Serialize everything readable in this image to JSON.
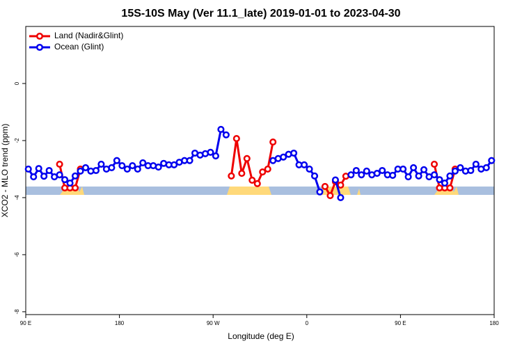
{
  "chart_data": {
    "type": "line",
    "title": "15S-10S May (Ver 11.1_late)   2019-01-01 to 2023-04-30",
    "x_label": "Longitude (deg E)",
    "y_label": "XCO2 - MLO trend (ppm)",
    "x": [
      92.5,
      97.5,
      102.5,
      107.5,
      112.5,
      117.5,
      122.5,
      127.5,
      132.5,
      137.5,
      142.5,
      147.5,
      152.5,
      157.5,
      162.5,
      167.5,
      172.5,
      177.5,
      182.5,
      187.5,
      192.5,
      197.5,
      202.5,
      207.5,
      212.5,
      217.5,
      222.5,
      227.5,
      232.5,
      237.5,
      242.5,
      247.5,
      252.5,
      257.5,
      262.5,
      267.5,
      272.5,
      277.5,
      282.5,
      287.5,
      292.5,
      297.5,
      302.5,
      307.5,
      312.5,
      317.5,
      322.5,
      327.5,
      332.5,
      337.5,
      342.5,
      347.5,
      352.5,
      357.5,
      362.5,
      367.5,
      372.5,
      377.5,
      382.5,
      387.5,
      392.5,
      397.5,
      402.5,
      407.5,
      412.5,
      417.5,
      422.5,
      427.5,
      432.5,
      437.5,
      442.5,
      447.5,
      452.5,
      457.5,
      462.5,
      467.5,
      472.5,
      477.5,
      482.5,
      487.5,
      492.5,
      497.5,
      502.5,
      507.5,
      512.5,
      517.5,
      522.5,
      527.5,
      532.5,
      537.5
    ],
    "series": [
      {
        "name": "Land (Nadir&Glint)",
        "color": "#ee0000",
        "values": [
          null,
          null,
          null,
          null,
          null,
          null,
          -2.83,
          -3.66,
          -3.66,
          -3.66,
          -3.0,
          null,
          null,
          null,
          null,
          null,
          null,
          null,
          null,
          null,
          null,
          null,
          null,
          null,
          null,
          null,
          null,
          null,
          null,
          null,
          null,
          null,
          null,
          null,
          null,
          null,
          null,
          null,
          null,
          -3.24,
          -1.93,
          -3.15,
          -2.63,
          -3.39,
          -3.51,
          -3.1,
          -3.0,
          -2.05,
          null,
          null,
          null,
          null,
          null,
          null,
          null,
          null,
          null,
          -3.61,
          -3.93,
          -3.44,
          -3.56,
          -3.25,
          null,
          null,
          null,
          null,
          null,
          null,
          null,
          null,
          null,
          null,
          null,
          null,
          null,
          null,
          null,
          null,
          -2.83,
          -3.66,
          -3.66,
          -3.66,
          -3.0,
          null,
          null,
          null,
          null,
          null,
          null,
          null
        ]
      },
      {
        "name": "Ocean (Glint)",
        "color": "#0000ee",
        "values": [
          -3.0,
          -3.27,
          -2.98,
          -3.25,
          -3.05,
          -3.27,
          -3.2,
          -3.37,
          -3.49,
          -3.24,
          -3.07,
          -2.95,
          -3.07,
          -3.05,
          -2.83,
          -3.0,
          -2.95,
          -2.7,
          -2.88,
          -3.0,
          -2.88,
          -3.0,
          -2.78,
          -2.88,
          -2.88,
          -2.93,
          -2.8,
          -2.85,
          -2.85,
          -2.76,
          -2.7,
          -2.7,
          -2.44,
          -2.51,
          -2.46,
          -2.41,
          -2.54,
          -1.61,
          -1.8,
          null,
          null,
          null,
          null,
          null,
          null,
          null,
          null,
          -2.7,
          -2.63,
          -2.58,
          -2.48,
          -2.44,
          -2.85,
          -2.85,
          -3.0,
          -3.24,
          -3.8,
          null,
          null,
          -3.38,
          -4.0,
          null,
          -3.2,
          -3.05,
          -3.2,
          -3.07,
          -3.2,
          -3.15,
          -3.05,
          -3.2,
          -3.22,
          -3.0,
          -3.0,
          -3.27,
          -2.95,
          -3.24,
          -3.02,
          -3.27,
          -3.2,
          -3.37,
          -3.49,
          -3.24,
          -3.07,
          -2.95,
          -3.07,
          -3.05,
          -2.83,
          -3.0,
          -2.95,
          -2.7
        ]
      }
    ],
    "xlim": [
      90,
      540
    ],
    "xticks": [
      {
        "value": 90,
        "label": "90 E"
      },
      {
        "value": 180,
        "label": "180"
      },
      {
        "value": 270,
        "label": "90 W"
      },
      {
        "value": 360,
        "label": "0"
      },
      {
        "value": 450,
        "label": "90 E"
      },
      {
        "value": 540,
        "label": "180"
      }
    ],
    "ylim": [
      -8.1,
      2
    ],
    "yticks": [
      0,
      -2,
      -4,
      -6,
      -8
    ],
    "legend": "top-left"
  }
}
